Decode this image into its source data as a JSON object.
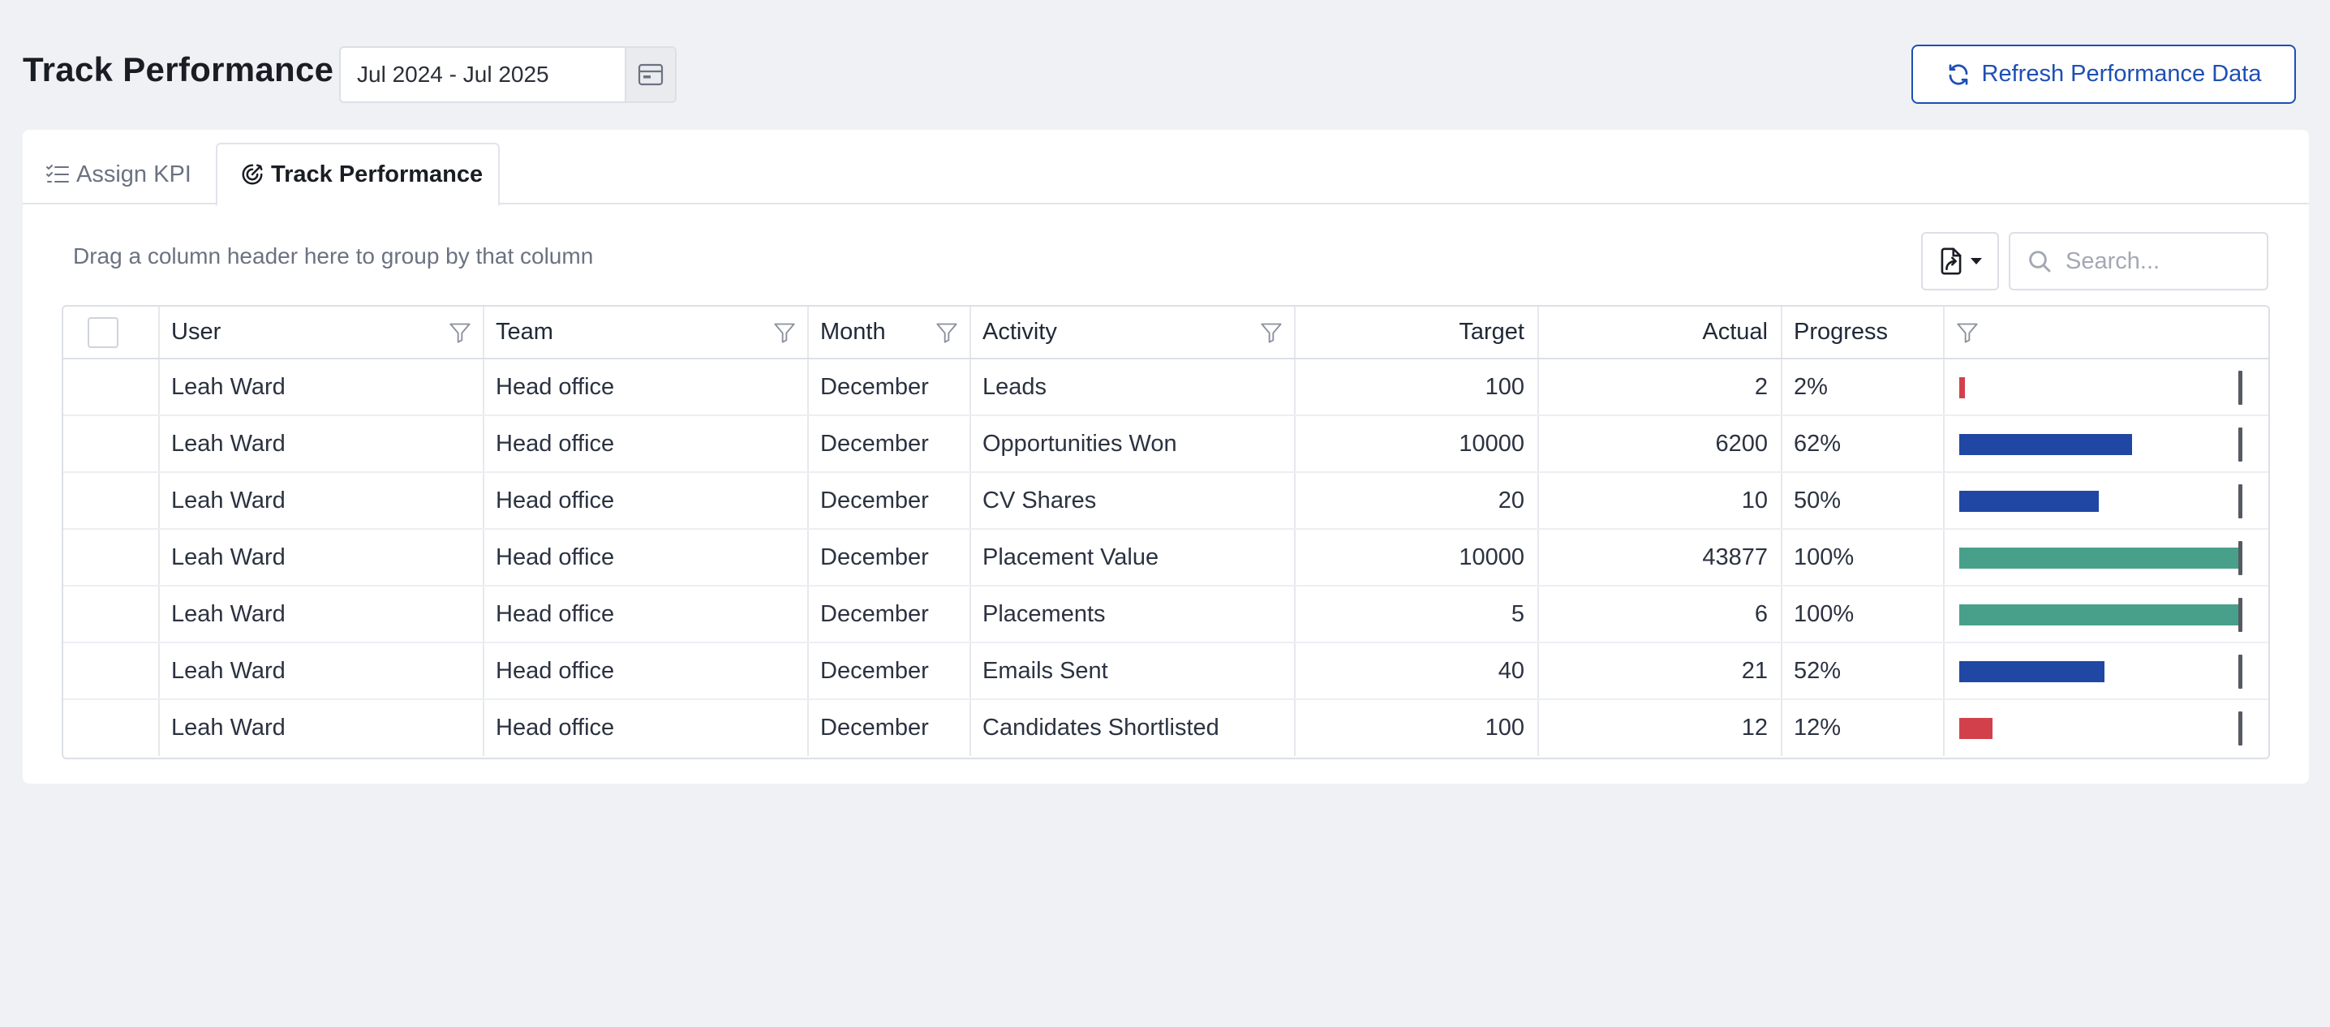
{
  "header": {
    "title": "Track Performance",
    "date_range": "Jul 2024 - Jul 2025",
    "refresh_label": "Refresh Performance Data"
  },
  "tabs": [
    {
      "label": "Assign KPI",
      "icon": "checklist-icon",
      "active": false
    },
    {
      "label": "Track Performance",
      "icon": "target-icon",
      "active": true
    }
  ],
  "toolbar": {
    "group_hint": "Drag a column header here to group by that column",
    "search_placeholder": "Search..."
  },
  "columns": {
    "user": "User",
    "team": "Team",
    "month": "Month",
    "activity": "Activity",
    "target": "Target",
    "actual": "Actual",
    "progress": "Progress"
  },
  "colors": {
    "accent": "#1d4fb4",
    "bar_low": "#d2414b",
    "bar_mid": "#1f47a3",
    "bar_complete": "#48a08a"
  },
  "rows": [
    {
      "user": "Leah Ward",
      "team": "Head office",
      "month": "December",
      "activity": "Leads",
      "target": "100",
      "actual": "2",
      "progress": "2%",
      "progress_value": 0.02,
      "bar_status": "low"
    },
    {
      "user": "Leah Ward",
      "team": "Head office",
      "month": "December",
      "activity": "Opportunities Won",
      "target": "10000",
      "actual": "6200",
      "progress": "62%",
      "progress_value": 0.62,
      "bar_status": "mid"
    },
    {
      "user": "Leah Ward",
      "team": "Head office",
      "month": "December",
      "activity": "CV Shares",
      "target": "20",
      "actual": "10",
      "progress": "50%",
      "progress_value": 0.5,
      "bar_status": "mid"
    },
    {
      "user": "Leah Ward",
      "team": "Head office",
      "month": "December",
      "activity": "Placement Value",
      "target": "10000",
      "actual": "43877",
      "progress": "100%",
      "progress_value": 1.0,
      "bar_status": "complete"
    },
    {
      "user": "Leah Ward",
      "team": "Head office",
      "month": "December",
      "activity": "Placements",
      "target": "5",
      "actual": "6",
      "progress": "100%",
      "progress_value": 1.0,
      "bar_status": "complete"
    },
    {
      "user": "Leah Ward",
      "team": "Head office",
      "month": "December",
      "activity": "Emails Sent",
      "target": "40",
      "actual": "21",
      "progress": "52%",
      "progress_value": 0.52,
      "bar_status": "mid"
    },
    {
      "user": "Leah Ward",
      "team": "Head office",
      "month": "December",
      "activity": "Candidates Shortlisted",
      "target": "100",
      "actual": "12",
      "progress": "12%",
      "progress_value": 0.12,
      "bar_status": "low"
    }
  ]
}
